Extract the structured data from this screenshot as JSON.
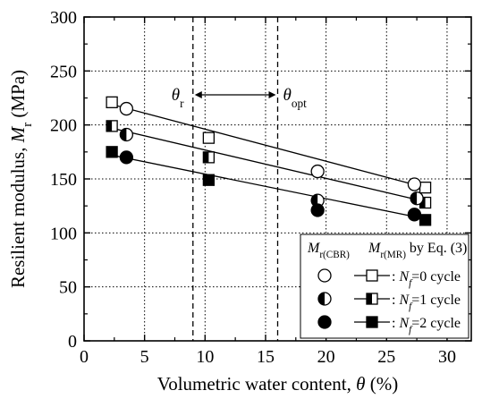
{
  "chart_data": {
    "type": "scatter",
    "x_range": [
      0,
      32
    ],
    "y_range": [
      0,
      300
    ],
    "x_ticks": [
      0,
      5,
      10,
      15,
      20,
      25,
      30
    ],
    "y_ticks": [
      0,
      50,
      100,
      150,
      200,
      250,
      300
    ],
    "x_tick_labels": [
      "0",
      "5",
      "10",
      "15",
      "20",
      "25",
      "30"
    ],
    "y_tick_labels": [
      "0",
      "50",
      "100",
      "150",
      "200",
      "250",
      "300"
    ],
    "grid": true,
    "xlabel": "Volumetric water content, θ (%)",
    "ylabel": "Resilient modulus, Mr (MPa)",
    "vlines": [
      {
        "x": 9.0,
        "label": "θr"
      },
      {
        "x": 16.0,
        "label": "θopt"
      }
    ],
    "legend_position": "bottom-right",
    "legend_header": [
      "Mr(CBR)",
      "Mr(MR) by Eq. (3)"
    ],
    "series": [
      {
        "name": ": Nf=0 cycle",
        "cbr_marker": "open-circle",
        "mr_marker": "open-square",
        "cbr_points": [
          [
            3.5,
            215
          ],
          [
            19.3,
            157
          ],
          [
            27.3,
            145
          ]
        ],
        "mr_points": [
          [
            2.3,
            221
          ],
          [
            10.3,
            188
          ],
          [
            28.2,
            142
          ]
        ],
        "fit_line": [
          [
            2.3,
            219
          ],
          [
            28.2,
            142
          ]
        ]
      },
      {
        "name": ": Nf=1 cycle",
        "cbr_marker": "half-circle",
        "mr_marker": "half-square",
        "cbr_points": [
          [
            3.5,
            191
          ],
          [
            19.3,
            130
          ],
          [
            27.5,
            132
          ]
        ],
        "mr_points": [
          [
            2.3,
            199
          ],
          [
            10.3,
            170
          ],
          [
            28.2,
            128
          ]
        ],
        "fit_line": [
          [
            2.3,
            197
          ],
          [
            28.2,
            129
          ]
        ]
      },
      {
        "name": ": Nf=2 cycle",
        "cbr_marker": "filled-circle",
        "mr_marker": "filled-square",
        "cbr_points": [
          [
            3.5,
            170
          ],
          [
            19.3,
            121
          ],
          [
            27.3,
            117
          ]
        ],
        "mr_points": [
          [
            2.3,
            175
          ],
          [
            10.3,
            149
          ],
          [
            28.2,
            112
          ]
        ],
        "fit_line": [
          [
            2.3,
            172
          ],
          [
            28.2,
            113
          ]
        ]
      }
    ]
  }
}
